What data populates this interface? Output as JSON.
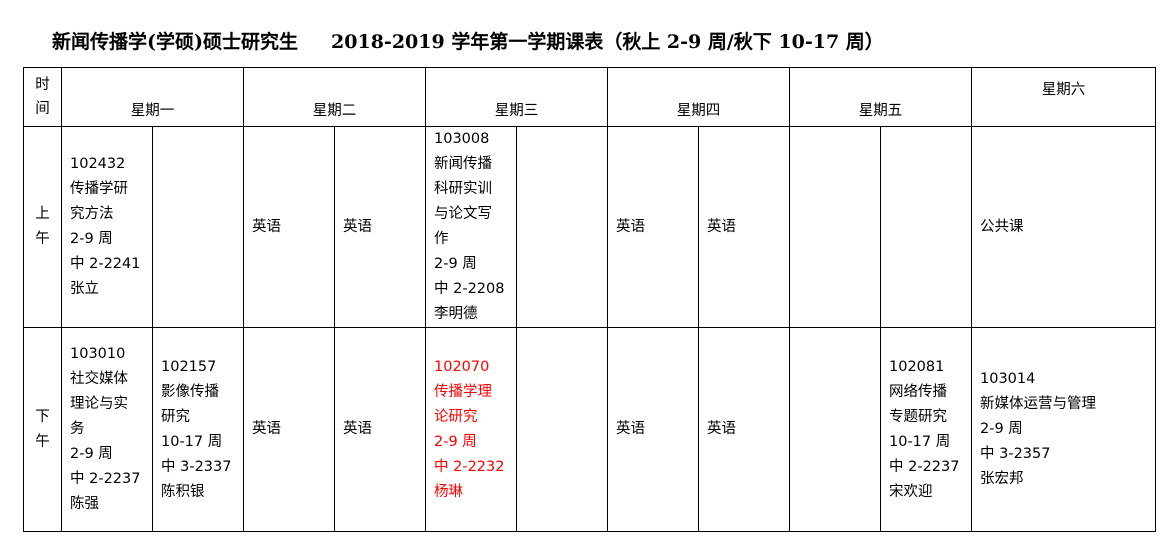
{
  "title": "新闻传播学(学硕)硕士研究生     2018-2019 学年第一学期课表（秋上 2-9 周/秋下 10-17 周）",
  "header": {
    "time": "时\n间",
    "days": [
      "星期一",
      "星期二",
      "星期三",
      "星期四",
      "星期五",
      "星期六"
    ]
  },
  "rows": [
    {
      "label": "上\n午",
      "cells": [
        "102432\n传播学研\n究方法\n2-9 周\n中 2-2241\n张立",
        "",
        "英语",
        "英语",
        "103008\n新闻传播\n科研实训\n与论文写\n作\n2-9 周\n中 2-2208\n李明德",
        "",
        "英语",
        "英语",
        "",
        "",
        "公共课"
      ]
    },
    {
      "label": "下\n午",
      "cells": [
        "103010\n社交媒体\n理论与实\n务\n2-9 周\n中 2-2237\n陈强",
        "102157\n影像传播\n研究\n10-17 周\n中 3-2337\n陈积银",
        "英语",
        "英语",
        "102070\n传播学理\n论研究\n2-9 周\n中 2-2232\n杨琳",
        "",
        "英语",
        "英语",
        "",
        "102081\n网络传播\n专题研究\n10-17 周\n中 2-2237\n宋欢迎",
        "103014\n新媒体运营与管理\n2-9 周\n中 3-2357\n张宏邦"
      ]
    }
  ],
  "highlight_color": "#ff0000"
}
